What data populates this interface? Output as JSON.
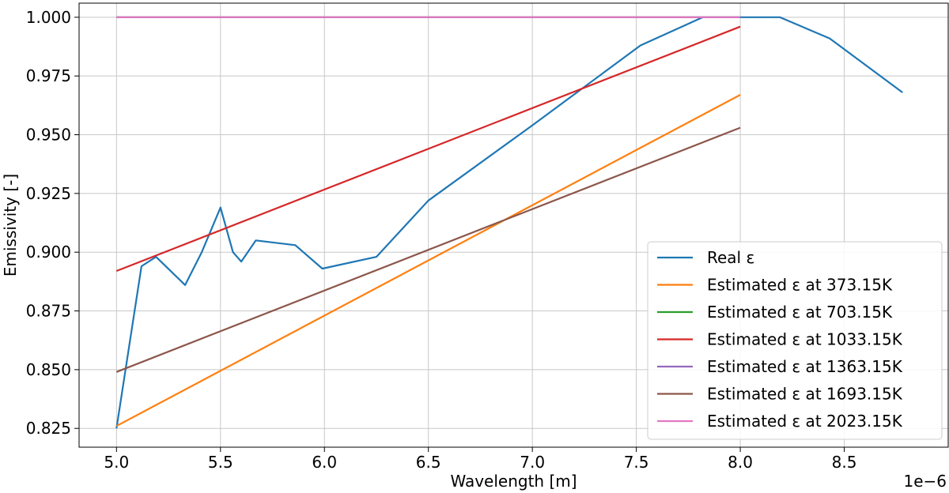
{
  "chart_data": {
    "type": "line",
    "title": "",
    "xlabel": "Wavelength [m]",
    "ylabel": "Emissivity [-]",
    "x_offset_label": "1e−6",
    "xlim": [
      4.82,
      9.0
    ],
    "ylim": [
      0.817,
      1.006
    ],
    "grid": true,
    "legend_position": "lower-right",
    "x_ticks": [
      5.0,
      5.5,
      6.0,
      6.5,
      7.0,
      7.5,
      8.0,
      8.5
    ],
    "x_tick_labels": [
      "5.0",
      "5.5",
      "6.0",
      "6.5",
      "7.0",
      "7.5",
      "8.0",
      "8.5"
    ],
    "y_ticks": [
      0.825,
      0.85,
      0.875,
      0.9,
      0.925,
      0.95,
      0.975,
      1.0
    ],
    "y_tick_labels": [
      "0.825",
      "0.850",
      "0.875",
      "0.900",
      "0.925",
      "0.950",
      "0.975",
      "1.000"
    ],
    "series": [
      {
        "name": "Real ε",
        "color": "#1f77b4",
        "x": [
          5.0,
          5.12,
          5.19,
          5.33,
          5.41,
          5.5,
          5.56,
          5.6,
          5.67,
          5.86,
          5.99,
          6.25,
          6.5,
          7.0,
          7.52,
          7.82,
          8.0,
          8.19,
          8.43,
          8.78
        ],
        "y": [
          0.825,
          0.894,
          0.898,
          0.886,
          0.9,
          0.919,
          0.9,
          0.896,
          0.905,
          0.903,
          0.893,
          0.898,
          0.922,
          0.954,
          0.988,
          1.0,
          1.0,
          1.0,
          0.991,
          0.968
        ]
      },
      {
        "name": "Estimated ε at 373.15K",
        "color": "#ff7f0e",
        "x": [
          5.0,
          8.0
        ],
        "y": [
          0.826,
          0.967
        ]
      },
      {
        "name": "Estimated ε at 703.15K",
        "color": "#2ca02c",
        "x": [
          5.0,
          8.0
        ],
        "y": [
          1.0,
          1.0
        ]
      },
      {
        "name": "Estimated ε at 1033.15K",
        "color": "#d62728",
        "x": [
          5.0,
          8.0
        ],
        "y": [
          0.892,
          0.996
        ]
      },
      {
        "name": "Estimated ε at 1363.15K",
        "color": "#9467bd",
        "x": [
          5.0,
          8.0
        ],
        "y": [
          1.0,
          1.0
        ]
      },
      {
        "name": "Estimated ε at 1693.15K",
        "color": "#8c564b",
        "x": [
          5.0,
          8.0
        ],
        "y": [
          0.849,
          0.953
        ]
      },
      {
        "name": "Estimated ε at 2023.15K",
        "color": "#e377c2",
        "x": [
          5.0,
          8.0
        ],
        "y": [
          1.0,
          1.0
        ]
      }
    ]
  }
}
